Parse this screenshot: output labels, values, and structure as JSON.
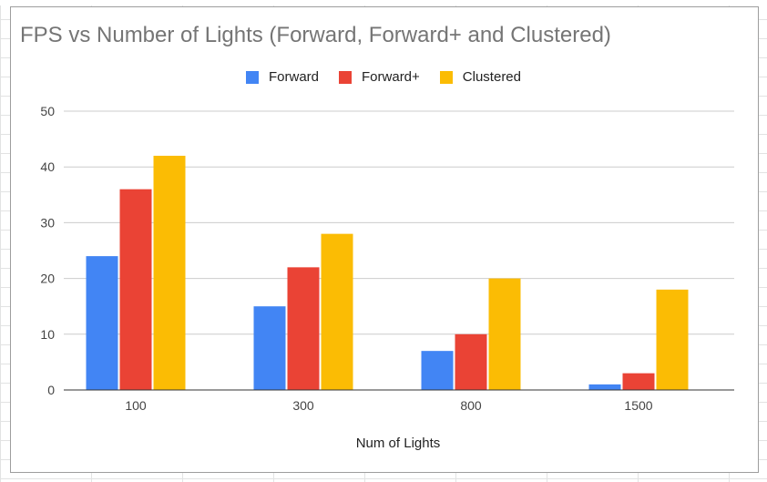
{
  "chart_data": {
    "type": "bar",
    "title": "FPS vs Number of Lights (Forward, Forward+ and Clustered)",
    "xlabel": "Num of Lights",
    "ylabel": "",
    "categories": [
      "100",
      "300",
      "800",
      "1500"
    ],
    "series": [
      {
        "name": "Forward",
        "color": "#4285f4",
        "values": [
          24,
          15,
          7,
          1
        ]
      },
      {
        "name": "Forward+",
        "color": "#ea4335",
        "values": [
          36,
          22,
          10,
          3
        ]
      },
      {
        "name": "Clustered",
        "color": "#fbbc04",
        "values": [
          42,
          28,
          20,
          18
        ]
      }
    ],
    "ylim": [
      0,
      50
    ],
    "yticks": [
      "0",
      "10",
      "20",
      "30",
      "40",
      "50"
    ],
    "grid": true,
    "legend_position": "top"
  }
}
